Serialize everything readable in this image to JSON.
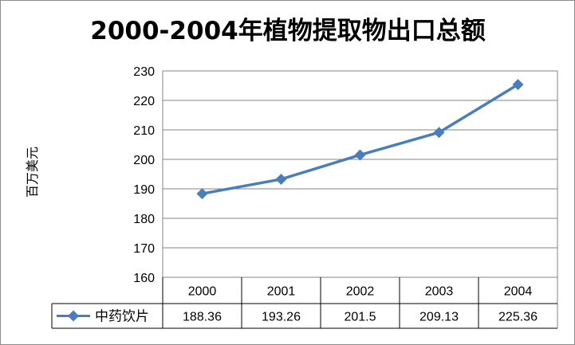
{
  "chart_data": {
    "type": "line",
    "title": "2000-2004年植物提取物出口总额",
    "ylabel": "百万美元",
    "xlabel": "",
    "categories": [
      "2000",
      "2001",
      "2002",
      "2003",
      "2004"
    ],
    "series": [
      {
        "name": "中药饮片",
        "values": [
          188.36,
          193.26,
          201.5,
          209.13,
          225.36
        ],
        "value_labels": [
          "188.36",
          "193.26",
          "201.5",
          "209.13",
          "225.36"
        ],
        "color": "#4a7ebb",
        "marker": "diamond"
      }
    ],
    "ylim": [
      160,
      230
    ],
    "yticks": [
      160,
      170,
      180,
      190,
      200,
      210,
      220,
      230
    ],
    "grid": true,
    "data_table": true,
    "legend": "in-data-table"
  }
}
